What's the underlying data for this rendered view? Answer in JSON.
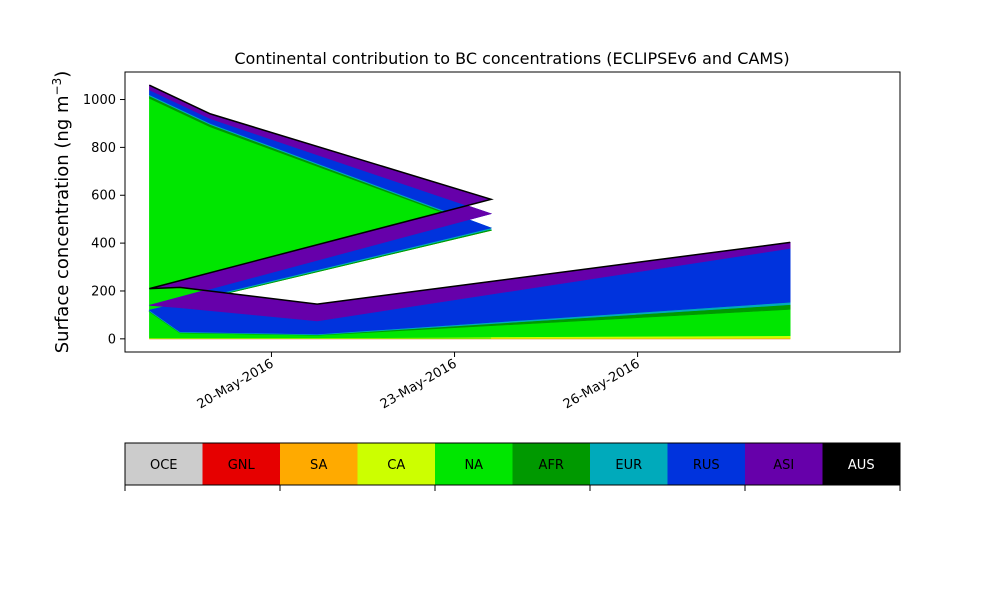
{
  "chart_data": {
    "type": "area",
    "title": "Continental contribution to BC concentrations (ECLIPSEv6 and CAMS)",
    "ylabel": "Surface concentration (ng m",
    "ylabel_sup": "−3",
    "ylabel_close": ")",
    "xlabel": "",
    "xlim": [
      17.6,
      30.3
    ],
    "ylim": [
      -55,
      1115
    ],
    "yticks": [
      0,
      200,
      400,
      600,
      800,
      1000
    ],
    "xticks": [
      {
        "value": 20,
        "label": "20-May-2016"
      },
      {
        "value": 23,
        "label": "23-May-2016"
      },
      {
        "value": 26,
        "label": "26-May-2016"
      }
    ],
    "grid": false,
    "x": [
      18,
      19,
      23.6,
      18,
      18.5,
      20.75,
      28.5
    ],
    "series": [
      {
        "name": "OCE",
        "color": "#cccccc",
        "values": [
          0,
          0,
          0,
          0,
          0,
          0,
          0
        ]
      },
      {
        "name": "GNL",
        "color": "#e60000",
        "values": [
          0,
          0,
          0,
          0,
          0,
          0,
          0
        ]
      },
      {
        "name": "SA",
        "color": "#ffaa00",
        "values": [
          2,
          2,
          1,
          1,
          2,
          2,
          3
        ]
      },
      {
        "name": "CA",
        "color": "#ccff00",
        "values": [
          3,
          3,
          2,
          2,
          3,
          3,
          10
        ]
      },
      {
        "name": "NA",
        "color": "#00e600",
        "values": [
          1000,
          880,
          450,
          110,
          20,
          10,
          110
        ]
      },
      {
        "name": "AFR",
        "color": "#009900",
        "values": [
          10,
          10,
          5,
          3,
          2,
          2,
          20
        ]
      },
      {
        "name": "EUR",
        "color": "#00aabb",
        "values": [
          5,
          5,
          5,
          4,
          3,
          3,
          10
        ]
      },
      {
        "name": "RUS",
        "color": "#0033dd",
        "values": [
          20,
          20,
          60,
          20,
          100,
          55,
          225
        ]
      },
      {
        "name": "ASI",
        "color": "#6600aa",
        "values": [
          20,
          20,
          60,
          70,
          85,
          70,
          25
        ]
      },
      {
        "name": "AUS",
        "color": "#000000",
        "values": [
          0,
          0,
          0,
          0,
          0,
          0,
          0
        ]
      }
    ]
  }
}
